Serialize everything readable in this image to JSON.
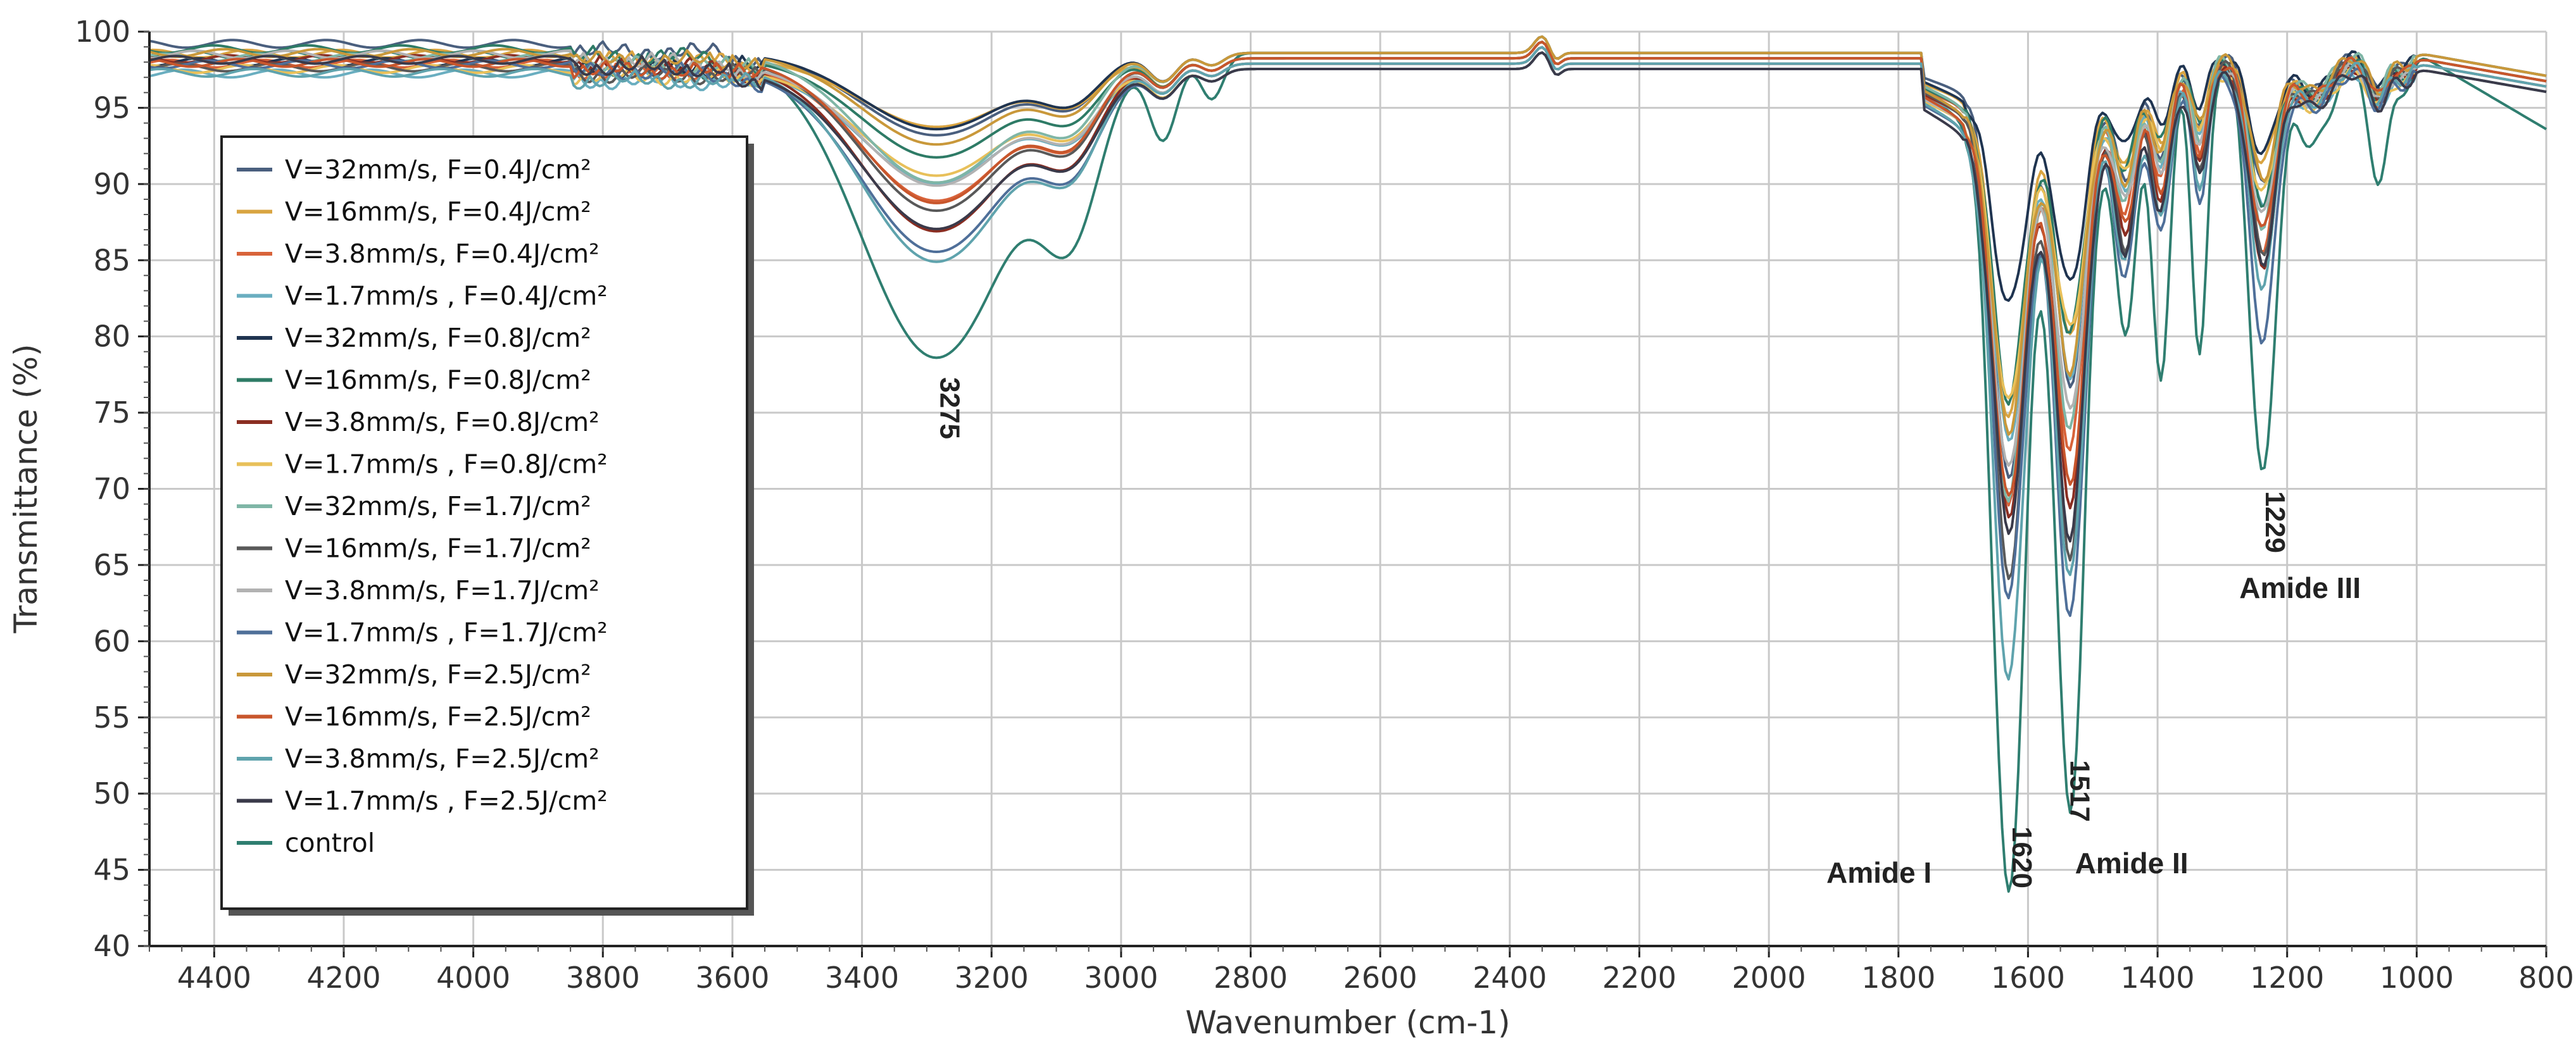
{
  "chart_data": {
    "type": "line",
    "xlabel": "Wavenumber (cm-1)",
    "ylabel": "Transmittance (%)",
    "xlim": [
      4500,
      800
    ],
    "ylim": [
      40,
      100
    ],
    "x_reversed": true,
    "x_ticks": [
      "4400",
      "4200",
      "4000",
      "3800",
      "3600",
      "3400",
      "3200",
      "3000",
      "2800",
      "2600",
      "2400",
      "2200",
      "2000",
      "1800",
      "1600",
      "1400",
      "1200",
      "1000",
      "800"
    ],
    "y_ticks": [
      "40",
      "45",
      "50",
      "55",
      "60",
      "65",
      "70",
      "75",
      "80",
      "85",
      "90",
      "95",
      "100"
    ],
    "grid": true,
    "legend_position": "top-left",
    "series": [
      {
        "name": "V=32mm/s, F=0.4J/cm²",
        "color": "#4a5f7e",
        "min": {
          "3275": 93.6,
          "1620": 74.0,
          "1517": 80.0,
          "1229": 90.0
        }
      },
      {
        "name": "V=16mm/s, F=0.4J/cm²",
        "color": "#d9a441",
        "min": {
          "3275": 94.5,
          "1620": 78.0,
          "1517": 83.0,
          "1229": 91.5
        }
      },
      {
        "name": "V=3.8mm/s, F=0.4J/cm²",
        "color": "#d8633a",
        "min": {
          "3275": 90.0,
          "1620": 73.0,
          "1517": 76.0,
          "1229": 86.0
        }
      },
      {
        "name": "V=1.7mm/s   , F=0.4J/cm²",
        "color": "#6aaec0",
        "min": {
          "3275": 91.5,
          "1620": 77.0,
          "1517": 81.0,
          "1229": 88.5
        }
      },
      {
        "name": "V=32mm/s, F=0.8J/cm²",
        "color": "#1f3450",
        "min": {
          "3275": 94.0,
          "1620": 86.0,
          "1517": 87.0,
          "1229": 92.0
        }
      },
      {
        "name": "V=16mm/s, F=0.8J/cm²",
        "color": "#2e7b66",
        "min": {
          "3275": 92.5,
          "1620": 80.0,
          "1517": 84.0,
          "1229": 89.0
        }
      },
      {
        "name": "V=3.8mm/s, F=0.8J/cm²",
        "color": "#8b2e22",
        "min": {
          "3275": 88.0,
          "1620": 72.5,
          "1517": 73.0,
          "1229": 84.5
        }
      },
      {
        "name": "V=1.7mm/s   , F=0.8J/cm²",
        "color": "#e8c05a",
        "min": {
          "3275": 92.0,
          "1620": 80.0,
          "1517": 84.5,
          "1229": 89.5
        }
      },
      {
        "name": "V=32mm/s, F=1.7J/cm²",
        "color": "#7fb6a6",
        "min": {
          "3275": 90.5,
          "1620": 74.0,
          "1517": 78.0,
          "1229": 87.5
        }
      },
      {
        "name": "V=16mm/s, F=1.7J/cm²",
        "color": "#595959",
        "min": {
          "3275": 89.0,
          "1620": 69.0,
          "1517": 70.0,
          "1229": 85.5
        }
      },
      {
        "name": "V=3.8mm/s, F=1.7J/cm²",
        "color": "#b2b2b2",
        "min": {
          "3275": 91.0,
          "1620": 76.0,
          "1517": 79.5,
          "1229": 88.0
        }
      },
      {
        "name": "V=1.7mm/s   , F=1.7J/cm²",
        "color": "#4f6f99",
        "min": {
          "3275": 87.0,
          "1620": 68.0,
          "1517": 66.0,
          "1229": 80.0
        }
      },
      {
        "name": "V=32mm/s, F=2.5J/cm²",
        "color": "#c9983a",
        "min": {
          "3275": 93.0,
          "1620": 79.0,
          "1517": 82.5,
          "1229": 90.5
        }
      },
      {
        "name": "V=16mm/s, F=2.5J/cm²",
        "color": "#c8562c",
        "min": {
          "3275": 89.5,
          "1620": 74.5,
          "1517": 75.0,
          "1229": 87.0
        }
      },
      {
        "name": "V=3.8mm/s, F=2.5J/cm²",
        "color": "#5fa3ad",
        "min": {
          "3275": 86.0,
          "1620": 63.0,
          "1517": 69.0,
          "1229": 83.5
        }
      },
      {
        "name": "V=1.7mm/s   , F=2.5J/cm²",
        "color": "#3a3a4a",
        "min": {
          "3275": 88.5,
          "1620": 73.0,
          "1517": 72.0,
          "1229": 85.0
        }
      },
      {
        "name": "control",
        "color": "#2f7e70",
        "min": {
          "3275": 79.0,
          "1620": 49.0,
          "1517": 54.0,
          "1229": 71.0
        }
      }
    ],
    "annotations": {
      "peaks": [
        {
          "text": "3275",
          "x": 3275
        },
        {
          "text": "1620",
          "x": 1620
        },
        {
          "text": "1517",
          "x": 1517
        },
        {
          "text": "1229",
          "x": 1229
        }
      ],
      "regions": [
        {
          "text": "Amide I",
          "x": 1830
        },
        {
          "text": "Amide II",
          "x": 1440
        },
        {
          "text": "Amide III",
          "x": 1220
        }
      ]
    }
  }
}
